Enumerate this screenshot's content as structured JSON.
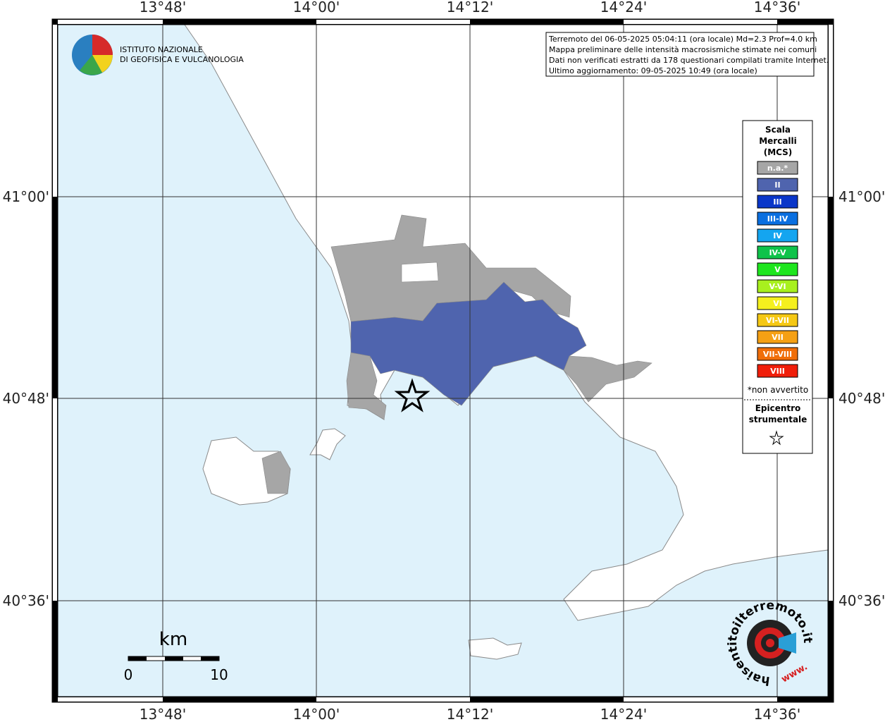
{
  "map": {
    "lon_labels": [
      "13°48'",
      "14°00'",
      "14°12'",
      "14°24'",
      "14°36'"
    ],
    "lat_labels": [
      "41°00'",
      "40°48'",
      "40°36'"
    ],
    "info_box": [
      "Terremoto del 06-05-2025 05:04:11 (ora locale) Md=2.3 Prof=4.0 km",
      "Mappa preliminare delle intensità macrosismiche stimate nei comuni",
      "Dati non verificati estratti da 178 questionari compilati tramite Internet.",
      "Ultimo aggiornamento: 09-05-2025 10:49 (ora locale)"
    ],
    "logo": [
      "ISTITUTO NAZIONALE",
      "DI GEOFISICA E VULCANOLOGIA"
    ],
    "legend": {
      "title": [
        "Scala",
        "Mercalli",
        "(MCS)"
      ],
      "items": [
        {
          "label": "n.a.*",
          "color": "#a6a6a6"
        },
        {
          "label": "II",
          "color": "#4f64ae"
        },
        {
          "label": "III",
          "color": "#0a36c9"
        },
        {
          "label": "III-IV",
          "color": "#0a6fe0"
        },
        {
          "label": "IV",
          "color": "#14a5f0"
        },
        {
          "label": "IV-V",
          "color": "#0fc34a"
        },
        {
          "label": "V",
          "color": "#1ee61e"
        },
        {
          "label": "V-VI",
          "color": "#a8f01e"
        },
        {
          "label": "VI",
          "color": "#f5f01e"
        },
        {
          "label": "VI-VII",
          "color": "#f5c814"
        },
        {
          "label": "VII",
          "color": "#f5a014"
        },
        {
          "label": "VII-VIII",
          "color": "#f06e0a"
        },
        {
          "label": "VIII",
          "color": "#f01e0a"
        }
      ],
      "note": "*non avvertito",
      "epicenter": [
        "Epicentro",
        "strumentale"
      ]
    },
    "scale_bar": {
      "unit": "km",
      "start": "0",
      "end": "10"
    },
    "hsit_logo": {
      "ring": "haisentitoilterremoto.it",
      "www": "www."
    }
  }
}
